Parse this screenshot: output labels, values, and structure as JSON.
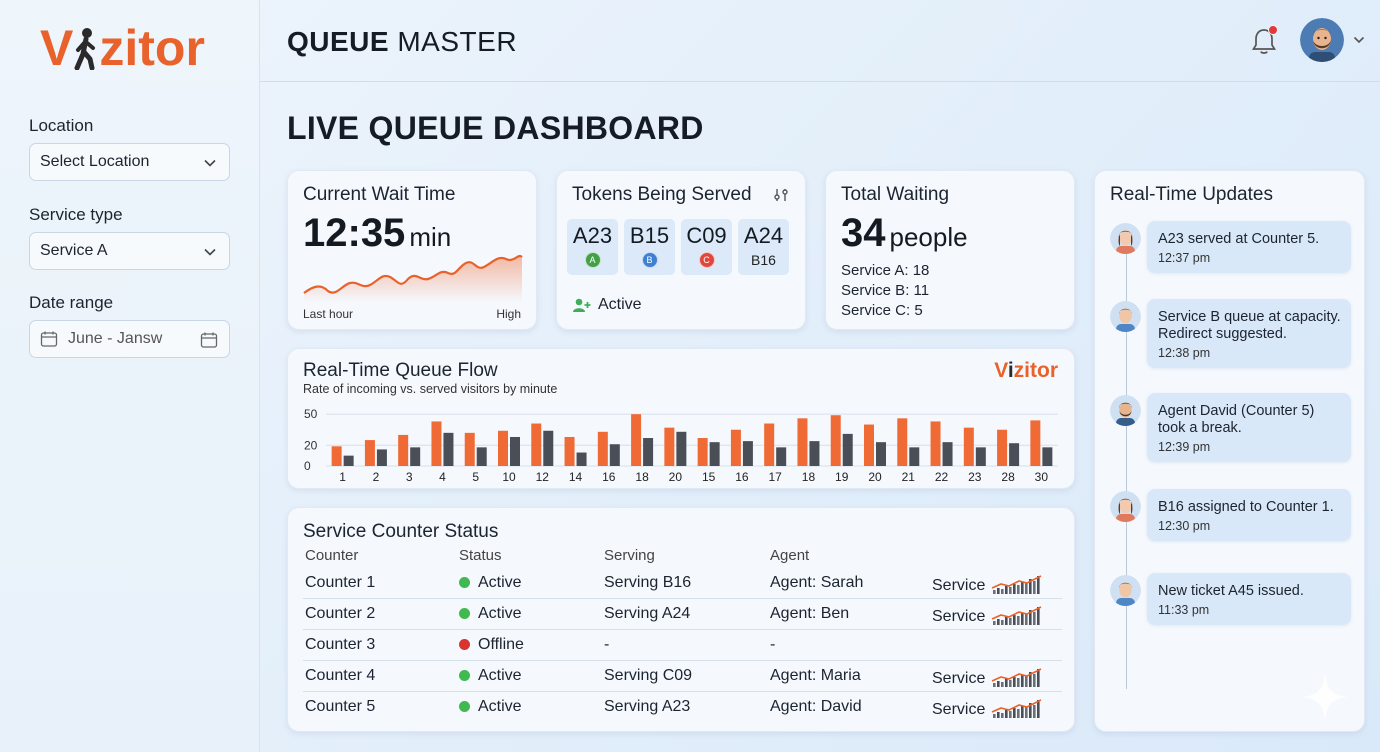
{
  "brand": {
    "logo_start": "V",
    "logo_end": "zitor"
  },
  "header": {
    "title_bold": "QUEUE",
    "title_light": "MASTER",
    "icons": [
      "bell-icon",
      "user-avatar",
      "chevron-down-icon"
    ]
  },
  "sidebar": {
    "location_label": "Location",
    "location_value": "Select Location",
    "service_label": "Service type",
    "service_value": "Service A",
    "date_label": "Date range",
    "date_value": "June - Jansw"
  },
  "page_title": "LIVE QUEUE DASHBOARD",
  "wait_card": {
    "title": "Current Wait Time",
    "value": "12:35",
    "unit": "min",
    "left_label": "Last hour",
    "right_label": "High",
    "accent": "#e9622b"
  },
  "tokens_card": {
    "title": "Tokens Being Served",
    "tokens": [
      {
        "code": "A23",
        "badge": "A",
        "color": "#43a047"
      },
      {
        "code": "B15",
        "badge": "B",
        "color": "#3f7fd1"
      },
      {
        "code": "C09",
        "badge": "C",
        "color": "#e0473c"
      },
      {
        "code": "A24",
        "sub": "B16"
      }
    ],
    "status": "Active"
  },
  "waiting_card": {
    "title": "Total Waiting",
    "value": "34",
    "unit": "people",
    "breakdown": [
      "Service A: 18",
      "Service B: 11",
      "Service C: 5"
    ]
  },
  "flow_card": {
    "title": "Real-Time Queue Flow",
    "subtitle": "Rate of incoming vs. served visitors by minute",
    "logo_v": "V",
    "logo_i": "i",
    "logo_rest": "zitor"
  },
  "chart_data": {
    "type": "bar",
    "title": "Real-Time Queue Flow",
    "subtitle": "Rate of incoming vs. served visitors by minute",
    "categories": [
      "1",
      "2",
      "3",
      "4",
      "5",
      "10",
      "12",
      "14",
      "16",
      "18",
      "20",
      "15",
      "16",
      "17",
      "18",
      "19",
      "20",
      "21",
      "22",
      "23",
      "28",
      "30"
    ],
    "y_ticks": [
      "50",
      "20",
      "0"
    ],
    "ylim": [
      0,
      55
    ],
    "grid": true,
    "series": [
      {
        "values": [
          19,
          25,
          30,
          43,
          32,
          34,
          41,
          28,
          33,
          50,
          37,
          27,
          35,
          41,
          46,
          49,
          40,
          46,
          43,
          37,
          35,
          44
        ],
        "color": "#ef6a35"
      },
      {
        "values": [
          10,
          16,
          18,
          32,
          18,
          28,
          34,
          13,
          21,
          27,
          33,
          23,
          24,
          18,
          24,
          31,
          23,
          18,
          23,
          18,
          22,
          18
        ],
        "color": "#4a4f57"
      }
    ]
  },
  "counters": {
    "title": "Service Counter Status",
    "headers": [
      "Counter",
      "Status",
      "Serving",
      "Agent"
    ],
    "rows": [
      {
        "name": "Counter 1",
        "status": "Active",
        "status_color": "#3fb950",
        "serving": "Serving B16",
        "agent": "Agent: Sarah",
        "service": "Service"
      },
      {
        "name": "Counter 2",
        "status": "Active",
        "status_color": "#3fb950",
        "serving": "Serving A24",
        "agent": "Agent: Ben",
        "service": "Service"
      },
      {
        "name": "Counter 3",
        "status": "Offline",
        "status_color": "#d9342f",
        "serving": "-",
        "agent": "-",
        "service": ""
      },
      {
        "name": "Counter 4",
        "status": "Active",
        "status_color": "#3fb950",
        "serving": "Serving C09",
        "agent": "Agent: Maria",
        "service": "Service"
      },
      {
        "name": "Counter 5",
        "status": "Active",
        "status_color": "#3fb950",
        "serving": "Serving A23",
        "agent": "Agent: David",
        "service": "Service"
      }
    ]
  },
  "updates": {
    "title": "Real-Time Updates",
    "items": [
      {
        "msg": "A23 served at Counter 5.",
        "time": "12:37 pm",
        "avatar": "female"
      },
      {
        "msg": "Service B queue at capacity. Redirect suggested.",
        "time": "12:38 pm",
        "avatar": "male"
      },
      {
        "msg": "Agent David (Counter 5) took a break.",
        "time": "12:39 pm",
        "avatar": "bearded"
      },
      {
        "msg": "B16 assigned to Counter 1.",
        "time": "12:30 pm",
        "avatar": "female"
      },
      {
        "msg": "New ticket A45 issued.",
        "time": "11:33 pm",
        "avatar": "male"
      }
    ]
  }
}
